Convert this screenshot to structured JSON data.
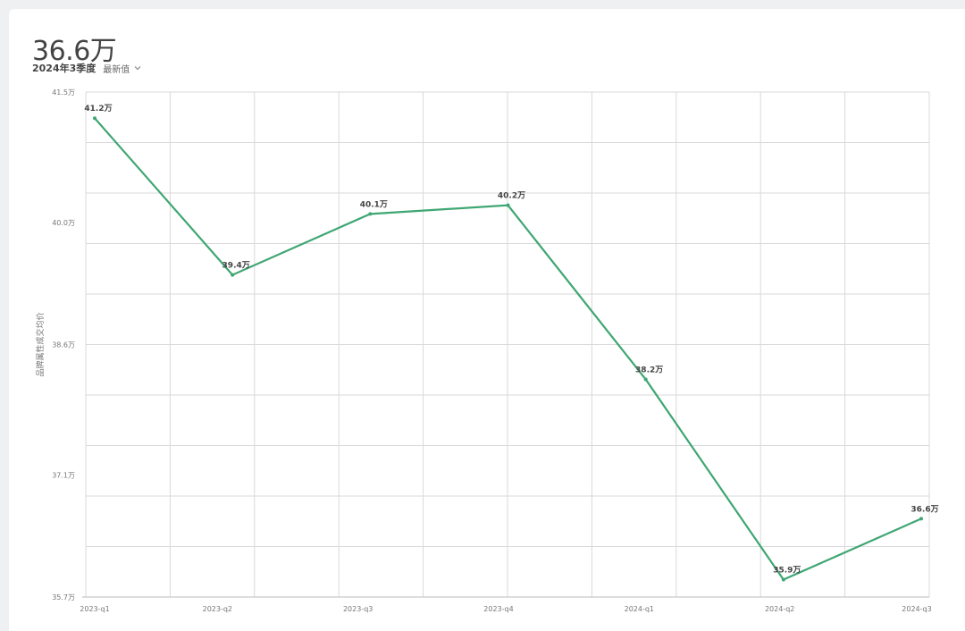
{
  "header": {
    "value": "36.6万",
    "period": "2024年3季度",
    "selector_label": "最新值"
  },
  "colors": {
    "line": "#3fa673",
    "grid": "#d9d9d9",
    "card": "#ffffff",
    "background": "#eef0f2"
  },
  "chart_data": {
    "type": "line",
    "categories": [
      "2023-q1",
      "2023-q2",
      "2023-q3",
      "2023-q4",
      "2024-q1",
      "2024-q2",
      "2024-q3"
    ],
    "series": [
      {
        "values": [
          41.2,
          39.4,
          40.1,
          40.2,
          38.2,
          35.9,
          36.6
        ],
        "labels": [
          "41.2万",
          "39.4万",
          "40.1万",
          "40.2万",
          "38.2万",
          "35.9万",
          "36.6万"
        ]
      }
    ],
    "ylabel": "品牌属性成交均价",
    "ylim": [
      35.7,
      41.5
    ],
    "yticks": [
      {
        "value": 41.5,
        "label": "41.5万"
      },
      {
        "value": 40.0,
        "label": "40.0万"
      },
      {
        "value": 38.6,
        "label": "38.6万"
      },
      {
        "value": 37.1,
        "label": "37.1万"
      },
      {
        "value": 35.7,
        "label": "35.7万"
      }
    ],
    "grid": true,
    "legend": "none"
  }
}
